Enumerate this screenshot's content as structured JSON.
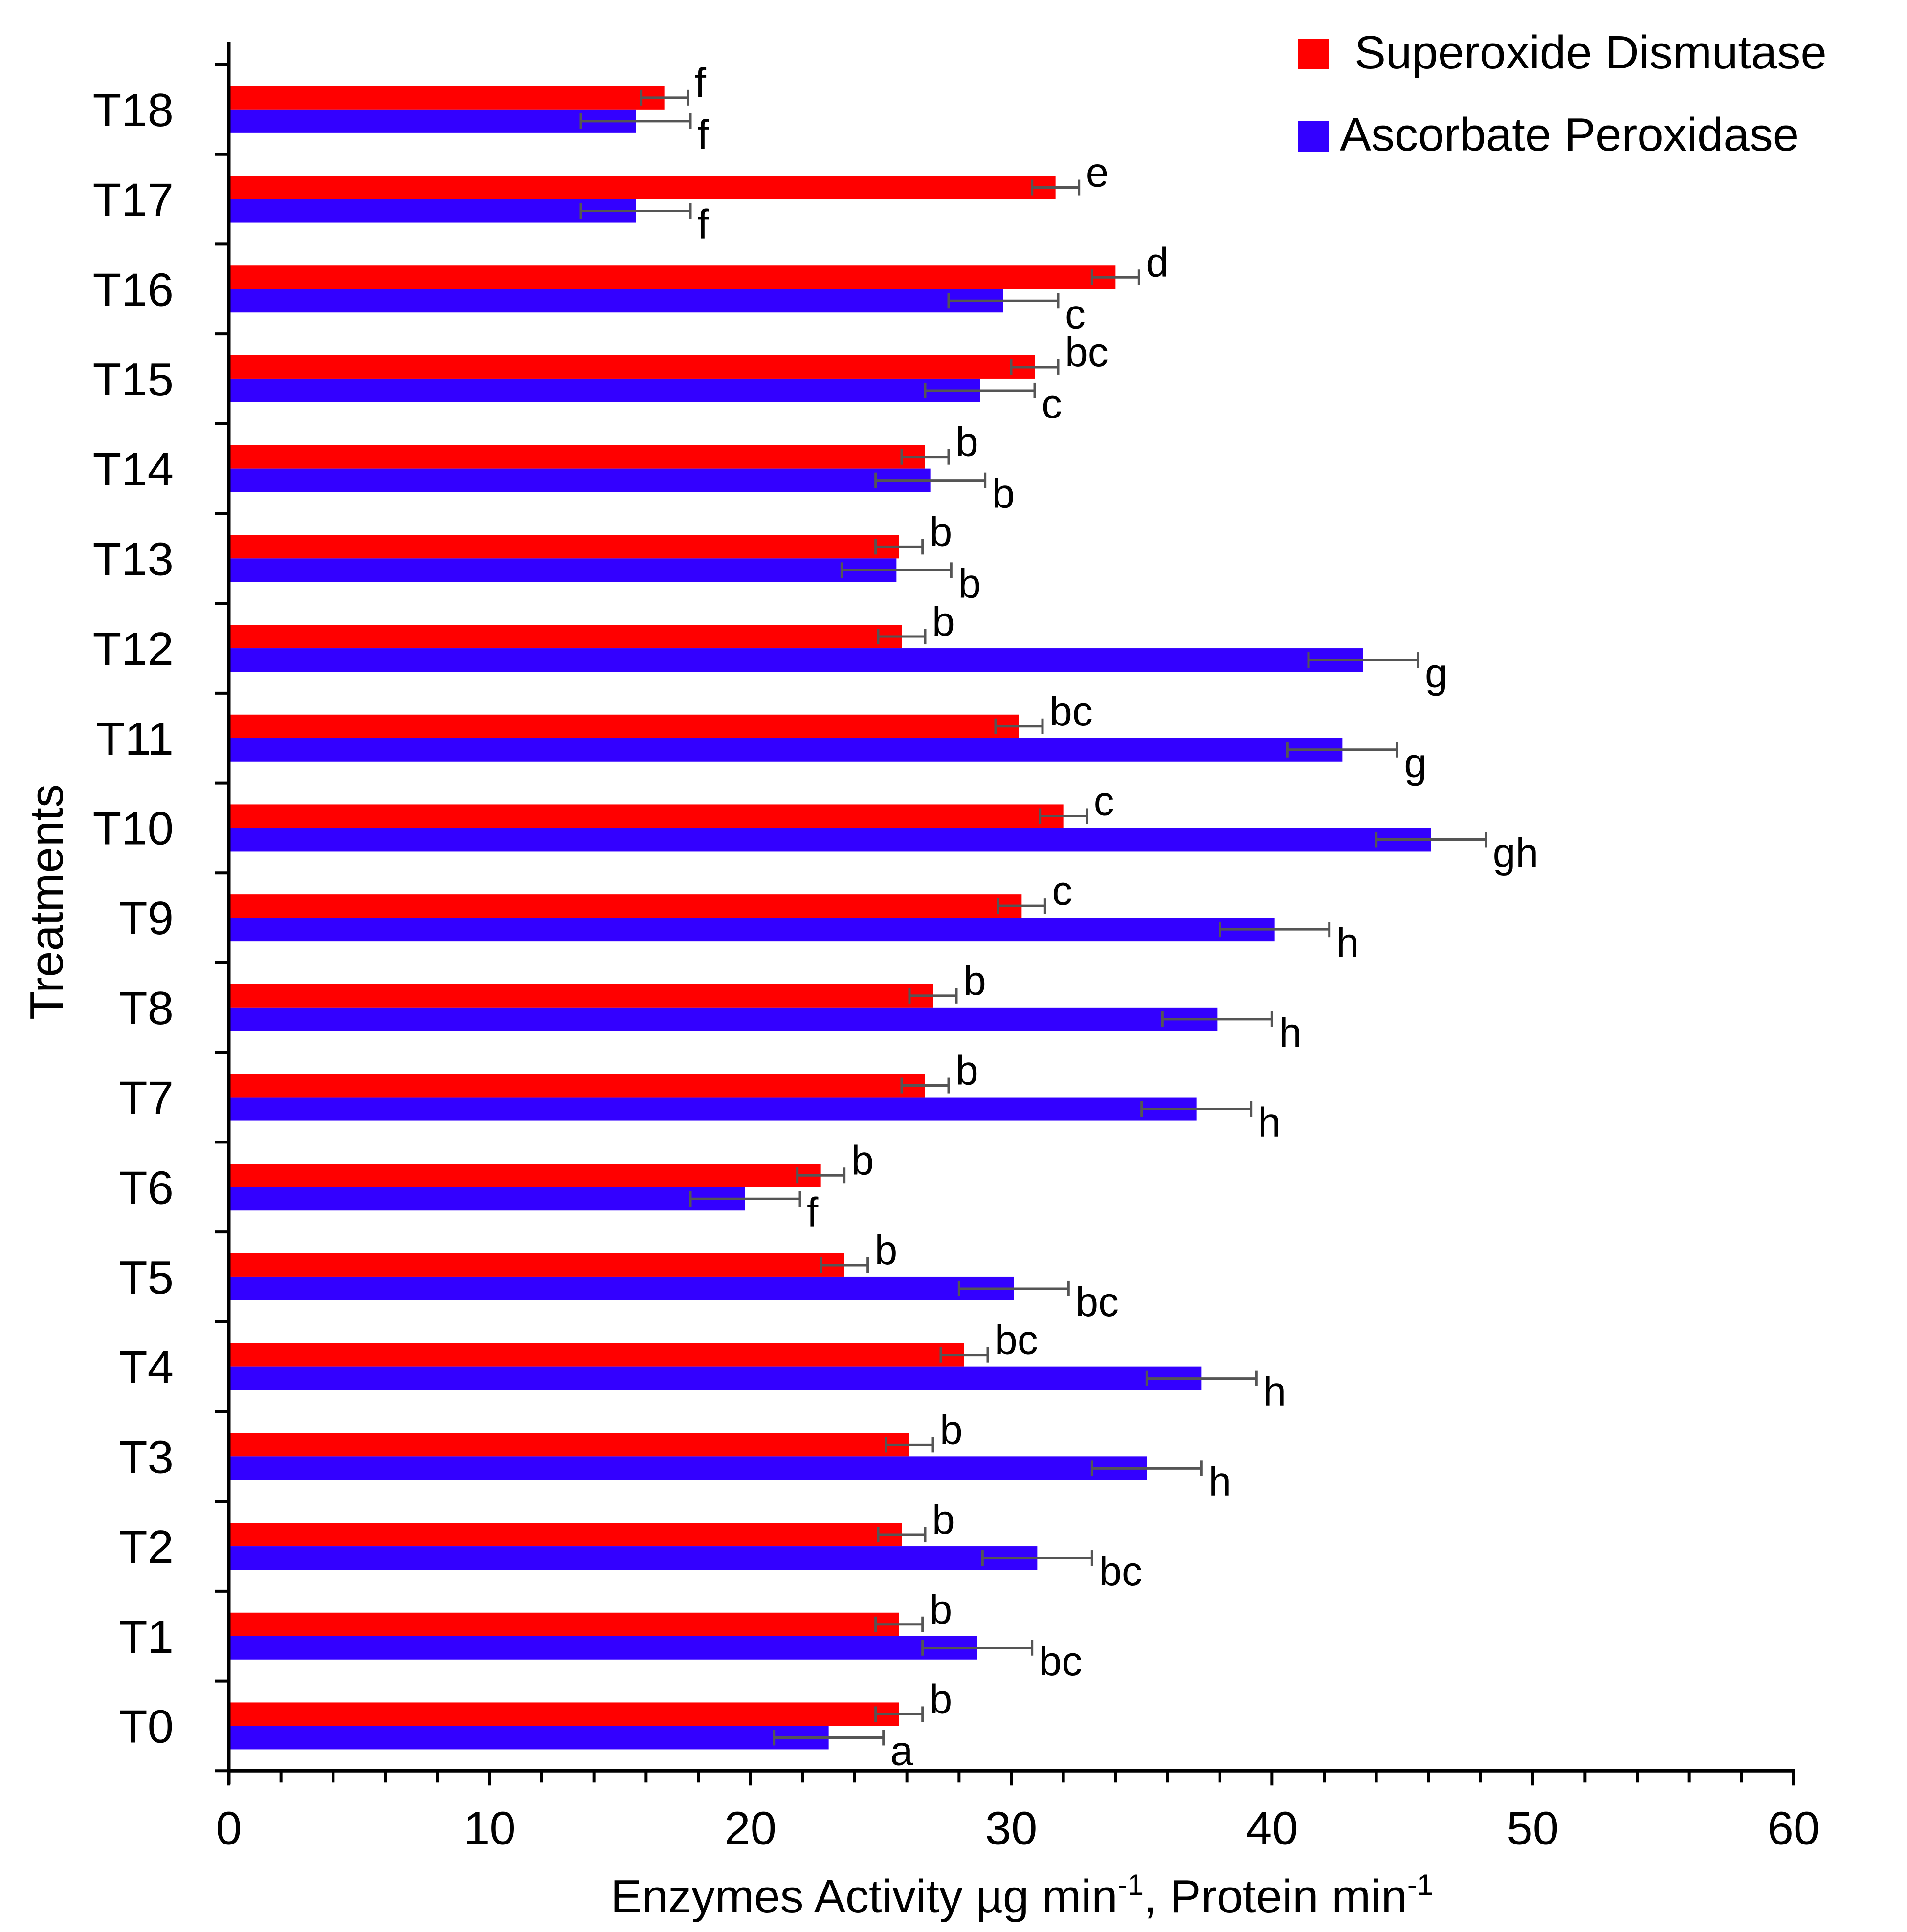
{
  "chart_data": {
    "type": "bar",
    "orientation": "horizontal",
    "title": "",
    "xlabel": "Enzymes Activity µg min",
    "xlabel_sup_1": "-1",
    "xlabel_mid": ", Protein min",
    "xlabel_sup_2": "-1",
    "ylabel": "Treatments",
    "xlim": [
      0,
      60
    ],
    "x_ticks": [
      0,
      10,
      20,
      30,
      40,
      50,
      60
    ],
    "x_minor_step": 2,
    "categories": [
      "T0",
      "T1",
      "T2",
      "T3",
      "T4",
      "T5",
      "T6",
      "T7",
      "T8",
      "T9",
      "T10",
      "T11",
      "T12",
      "T13",
      "T14",
      "T15",
      "T16",
      "T17",
      "T18"
    ],
    "legend_position": "top-right",
    "series": [
      {
        "name": "Superoxide Dismutase",
        "color": "#ff0000",
        "values": [
          25.7,
          25.7,
          25.8,
          26.1,
          28.2,
          23.6,
          22.7,
          26.7,
          27.0,
          30.4,
          32.0,
          30.3,
          25.8,
          25.7,
          26.7,
          30.9,
          34.0,
          31.7,
          16.7
        ],
        "errors": [
          0.9,
          0.9,
          0.9,
          0.9,
          0.9,
          0.9,
          0.9,
          0.9,
          0.9,
          0.9,
          0.9,
          0.9,
          0.9,
          0.9,
          0.9,
          0.9,
          0.9,
          0.9,
          0.9
        ],
        "letters": [
          "b",
          "b",
          "b",
          "b",
          "bc",
          "b",
          "b",
          "b",
          "b",
          "c",
          "c",
          "bc",
          "b",
          "b",
          "b",
          "bc",
          "d",
          "e",
          "f"
        ]
      },
      {
        "name": "Ascorbate Peroxidase",
        "color": "#3300ff",
        "values": [
          23.0,
          28.7,
          31.0,
          35.2,
          37.3,
          30.1,
          19.8,
          37.1,
          37.9,
          40.1,
          46.1,
          42.7,
          43.5,
          25.6,
          26.9,
          28.8,
          29.7,
          15.6,
          15.6
        ],
        "errors": [
          2.1,
          2.1,
          2.1,
          2.1,
          2.1,
          2.1,
          2.1,
          2.1,
          2.1,
          2.1,
          2.1,
          2.1,
          2.1,
          2.1,
          2.1,
          2.1,
          2.1,
          2.1,
          2.1
        ],
        "letters": [
          "a",
          "bc",
          "bc",
          "h",
          "h",
          "bc",
          "f",
          "h",
          "h",
          "h",
          "gh",
          "g",
          "g",
          "b",
          "b",
          "c",
          "c",
          "f",
          "f"
        ]
      }
    ]
  }
}
